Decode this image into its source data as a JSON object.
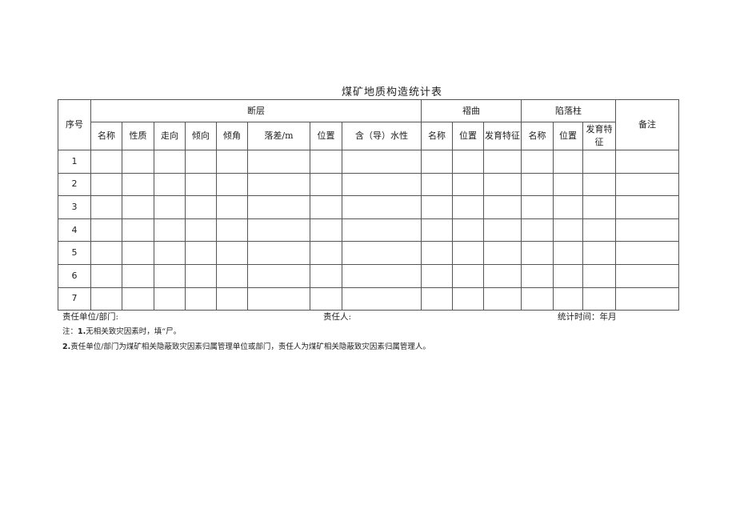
{
  "title": "煤矿地质构造统计表",
  "headers": {
    "seq": "序号",
    "fault": "断层",
    "fold": "褶曲",
    "collapse": "陷落柱",
    "remark": "备注",
    "fault_cols": [
      "名称",
      "性质",
      "走向",
      "倾向",
      "倾角",
      "落差/m",
      "位置",
      "含（导）水性"
    ],
    "fold_cols": [
      "名称",
      "位置",
      "发育特征"
    ],
    "collapse_cols": [
      "名称",
      "位置",
      "发育特征"
    ]
  },
  "rows": [
    "1",
    "2",
    "3",
    "4",
    "5",
    "6",
    "7"
  ],
  "footer": {
    "unit_label": "责任单位/部门:",
    "person_label": "责任人:",
    "time_label": "统计时间：年月"
  },
  "notes": {
    "note1_prefix": "注：",
    "note1_num": "1.",
    "note1_text": "无相关致灾因素时，填“尸。",
    "note2_num": "2.",
    "note2_text": "责任单位/部门为煤矿相关隐蔽致灾因素归属管理单位或部门，责任人为煤矿相关隐蔽致灾因素归属管理人。"
  }
}
